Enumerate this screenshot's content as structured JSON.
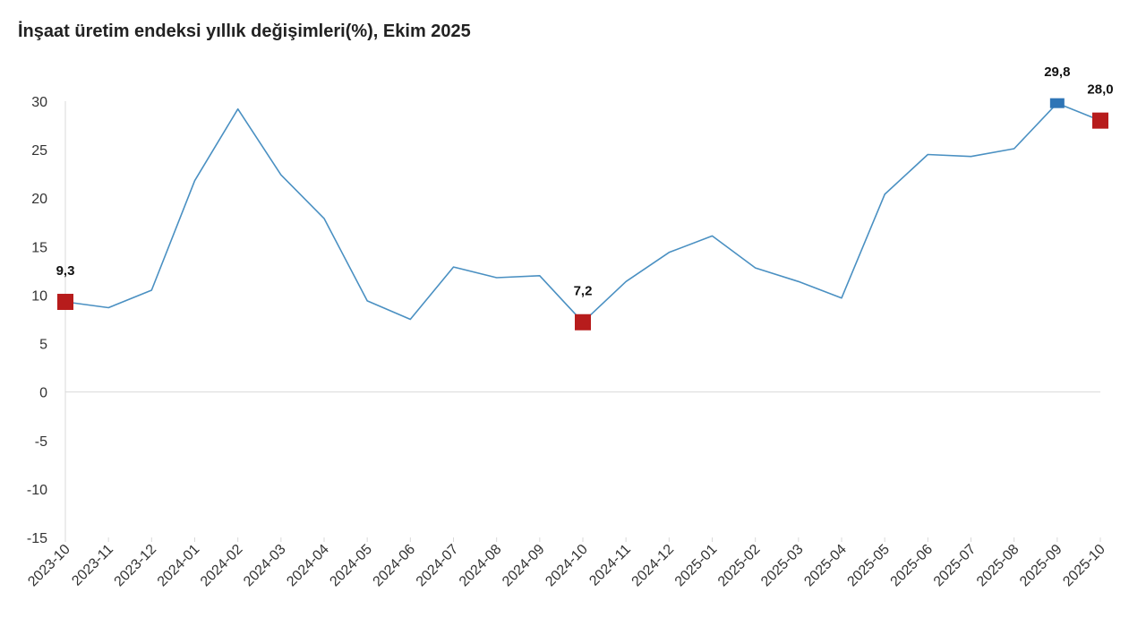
{
  "chart_data": {
    "type": "line",
    "title": "İnşaat üretim endeksi yıllık değişimleri(%), Ekim 2025",
    "xlabel": "",
    "ylabel": "",
    "ylim": [
      -15,
      30
    ],
    "yticks": [
      30,
      25,
      20,
      15,
      10,
      5,
      0,
      -5,
      -10,
      -15
    ],
    "ytick_labels": [
      "30",
      "25",
      "20",
      "15",
      "10",
      "5",
      "0",
      "-5",
      "-10",
      "-15"
    ],
    "grid": false,
    "categories": [
      "2023-10",
      "2023-11",
      "2023-12",
      "2024-01",
      "2024-02",
      "2024-03",
      "2024-04",
      "2024-05",
      "2024-06",
      "2024-07",
      "2024-08",
      "2024-09",
      "2024-10",
      "2024-11",
      "2024-12",
      "2025-01",
      "2025-02",
      "2025-03",
      "2025-04",
      "2025-05",
      "2025-06",
      "2025-07",
      "2025-08",
      "2025-09",
      "2025-10"
    ],
    "series": [
      {
        "values": [
          9.3,
          8.7,
          10.5,
          21.8,
          29.2,
          22.4,
          17.9,
          9.4,
          7.5,
          12.9,
          11.8,
          12.0,
          7.2,
          11.4,
          14.4,
          16.1,
          12.8,
          11.4,
          9.7,
          20.4,
          24.5,
          24.3,
          25.1,
          29.8,
          28.0
        ],
        "color": "#4a90c2"
      }
    ],
    "data_labels": [
      {
        "index": 0,
        "text": "9,3",
        "marker_color": "#b71c1c"
      },
      {
        "index": 12,
        "text": "7,2",
        "marker_color": "#b71c1c"
      },
      {
        "index": 23,
        "text": "29,8",
        "marker_color": "#2e75b6"
      },
      {
        "index": 24,
        "text": "28,0",
        "marker_color": "#b71c1c"
      }
    ],
    "axis_color": "#d9d9d9"
  }
}
